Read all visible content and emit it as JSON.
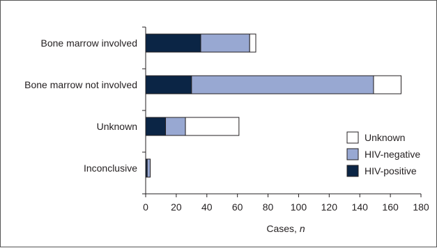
{
  "chart_data": {
    "type": "bar",
    "orientation": "horizontal",
    "stacked": true,
    "categories": [
      "Bone marrow involved",
      "Bone marrow not involved",
      "Unknown",
      "Inconclusive"
    ],
    "series": [
      {
        "name": "HIV-positive",
        "color": "#0b2545",
        "values": [
          36,
          30,
          13,
          1
        ]
      },
      {
        "name": "HIV-negative",
        "color": "#98a8d2",
        "values": [
          32,
          119,
          13,
          2
        ]
      },
      {
        "name": "Unknown",
        "color": "#ffffff",
        "values": [
          4,
          18,
          35,
          0
        ]
      }
    ],
    "xlabel": "Cases,",
    "xlabel_italic": "n",
    "xlim": [
      0,
      180
    ],
    "xticks": [
      0,
      20,
      40,
      60,
      80,
      100,
      120,
      140,
      160,
      180
    ],
    "legend_order": [
      "Unknown",
      "HIV-negative",
      "HIV-positive"
    ],
    "legend_position": "right",
    "grid": false
  }
}
